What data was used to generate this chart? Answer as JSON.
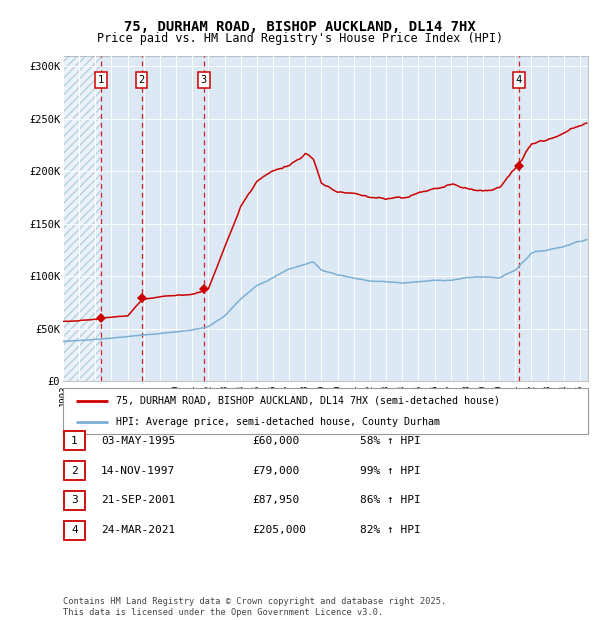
{
  "title_line1": "75, DURHAM ROAD, BISHOP AUCKLAND, DL14 7HX",
  "title_line2": "Price paid vs. HM Land Registry's House Price Index (HPI)",
  "bg_color": "#dce9f5",
  "hatch_color": "#b8cfe0",
  "grid_color": "#ffffff",
  "red_line_color": "#cc0000",
  "blue_line_color": "#7bafd4",
  "sale_marker_color": "#cc0000",
  "dashed_line_color": "#cc0000",
  "sale_dates": [
    1995.34,
    1997.87,
    2001.72,
    2021.23
  ],
  "sale_prices": [
    60000,
    79000,
    87950,
    205000
  ],
  "legend_entries": [
    {
      "color": "#cc0000",
      "text": "75, DURHAM ROAD, BISHOP AUCKLAND, DL14 7HX (semi-detached house)"
    },
    {
      "color": "#7bafd4",
      "text": "HPI: Average price, semi-detached house, County Durham"
    }
  ],
  "table_entries": [
    {
      "label": "1",
      "date": "03-MAY-1995",
      "price": "£60,000",
      "hpi": "58% ↑ HPI"
    },
    {
      "label": "2",
      "date": "14-NOV-1997",
      "price": "£79,000",
      "hpi": "99% ↑ HPI"
    },
    {
      "label": "3",
      "date": "21-SEP-2001",
      "price": "£87,950",
      "hpi": "86% ↑ HPI"
    },
    {
      "label": "4",
      "date": "24-MAR-2021",
      "price": "£205,000",
      "hpi": "82% ↑ HPI"
    }
  ],
  "footer": "Contains HM Land Registry data © Crown copyright and database right 2025.\nThis data is licensed under the Open Government Licence v3.0.",
  "ylim": [
    0,
    310000
  ],
  "yticks": [
    0,
    50000,
    100000,
    150000,
    200000,
    250000,
    300000
  ],
  "ytick_labels": [
    "£0",
    "£50K",
    "£100K",
    "£150K",
    "£200K",
    "£250K",
    "£300K"
  ],
  "xmin": 1993.0,
  "xmax": 2025.5,
  "blue_keypoints": [
    [
      1993.0,
      38000
    ],
    [
      1994,
      39000
    ],
    [
      1995,
      40000
    ],
    [
      1996,
      41500
    ],
    [
      1997,
      43000
    ],
    [
      1998,
      44500
    ],
    [
      1999,
      46000
    ],
    [
      2000,
      47500
    ],
    [
      2001,
      49000
    ],
    [
      2002,
      52000
    ],
    [
      2003,
      62000
    ],
    [
      2004,
      78000
    ],
    [
      2005,
      92000
    ],
    [
      2006,
      100000
    ],
    [
      2007,
      108000
    ],
    [
      2008.5,
      115000
    ],
    [
      2009,
      107000
    ],
    [
      2010,
      103000
    ],
    [
      2011,
      100000
    ],
    [
      2012,
      97000
    ],
    [
      2013,
      96000
    ],
    [
      2014,
      95000
    ],
    [
      2015,
      96000
    ],
    [
      2016,
      97000
    ],
    [
      2017,
      98000
    ],
    [
      2018,
      100000
    ],
    [
      2019,
      101000
    ],
    [
      2020,
      100000
    ],
    [
      2021,
      108000
    ],
    [
      2022,
      125000
    ],
    [
      2023,
      128000
    ],
    [
      2024,
      132000
    ],
    [
      2025.4,
      140000
    ]
  ],
  "red_keypoints": [
    [
      1993.0,
      57000
    ],
    [
      1994,
      58000
    ],
    [
      1995.34,
      60000
    ],
    [
      1996,
      62000
    ],
    [
      1997,
      64000
    ],
    [
      1997.87,
      79000
    ],
    [
      1998,
      80000
    ],
    [
      1999,
      82000
    ],
    [
      2000,
      83000
    ],
    [
      2001,
      85000
    ],
    [
      2001.72,
      87950
    ],
    [
      2002,
      90000
    ],
    [
      2003,
      130000
    ],
    [
      2004,
      170000
    ],
    [
      2005,
      195000
    ],
    [
      2006,
      205000
    ],
    [
      2007,
      210000
    ],
    [
      2008,
      222000
    ],
    [
      2008.5,
      218000
    ],
    [
      2009,
      195000
    ],
    [
      2010,
      185000
    ],
    [
      2011,
      182000
    ],
    [
      2012,
      178000
    ],
    [
      2013,
      175000
    ],
    [
      2014,
      173000
    ],
    [
      2015,
      177000
    ],
    [
      2016,
      180000
    ],
    [
      2017,
      183000
    ],
    [
      2018,
      180000
    ],
    [
      2019,
      178000
    ],
    [
      2020,
      182000
    ],
    [
      2021.23,
      205000
    ],
    [
      2022,
      225000
    ],
    [
      2023,
      230000
    ],
    [
      2024,
      235000
    ],
    [
      2025.4,
      248000
    ]
  ]
}
